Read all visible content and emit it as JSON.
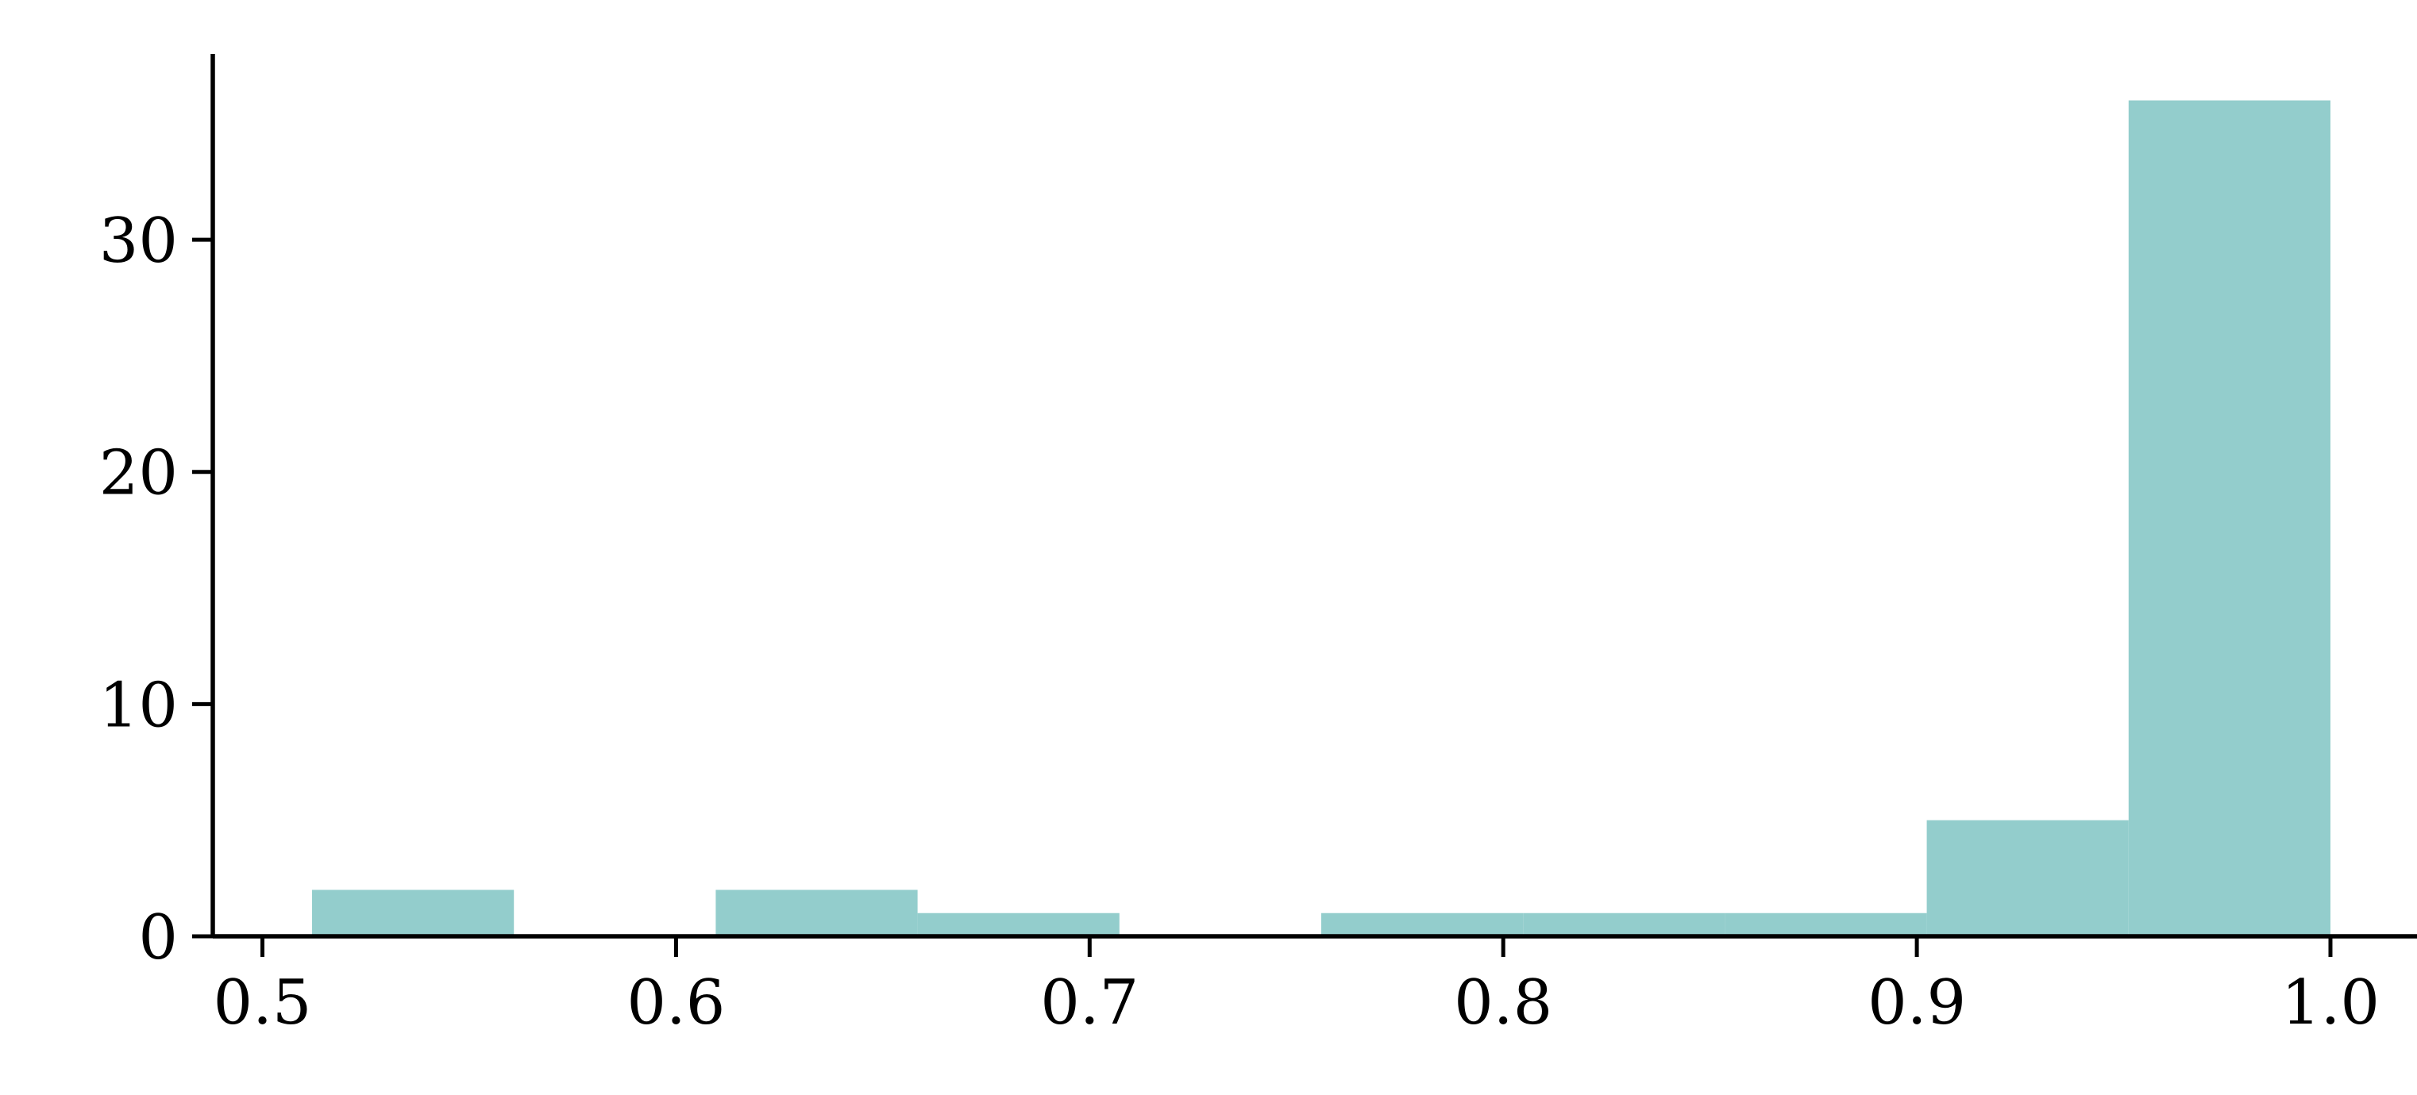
{
  "chart_data": {
    "type": "histogram",
    "title": "",
    "xlabel": "",
    "ylabel": "",
    "bin_edges": [
      0.512,
      0.5608,
      0.6096,
      0.6584,
      0.7072,
      0.756,
      0.8048,
      0.8536,
      0.9024,
      0.9512,
      1.0
    ],
    "counts": [
      2,
      0,
      2,
      1,
      0,
      1,
      1,
      1,
      5,
      36
    ],
    "xlim": [
      0.488,
      1.024
    ],
    "ylim": [
      0,
      38
    ],
    "xticks": [
      0.5,
      0.6,
      0.7,
      0.8,
      0.9,
      1.0
    ],
    "xtick_labels": [
      "0.5",
      "0.6",
      "0.7",
      "0.8",
      "0.9",
      "1.0"
    ],
    "yticks": [
      0,
      10,
      20,
      30
    ],
    "ytick_labels": [
      "0",
      "10",
      "20",
      "30"
    ],
    "bar_color": "#93cdcc",
    "axis_color": "#000000",
    "grid": false,
    "legend": false,
    "spines": [
      "left",
      "bottom"
    ]
  }
}
